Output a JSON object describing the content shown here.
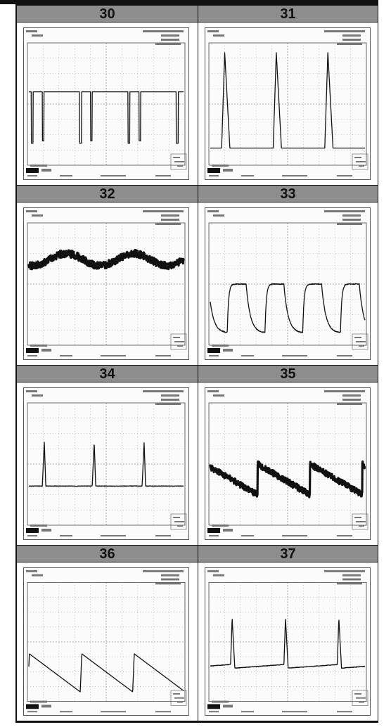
{
  "figures": [
    {
      "number": "30",
      "waveform": "negative-pulse"
    },
    {
      "number": "31",
      "waveform": "positive-spike"
    },
    {
      "number": "32",
      "waveform": "noisy-sine"
    },
    {
      "number": "33",
      "waveform": "square-rounded"
    },
    {
      "number": "34",
      "waveform": "spike-small"
    },
    {
      "number": "35",
      "waveform": "sawtooth-noisy"
    },
    {
      "number": "36",
      "waveform": "sawtooth-low"
    },
    {
      "number": "37",
      "waveform": "spike-sawtooth"
    }
  ]
}
